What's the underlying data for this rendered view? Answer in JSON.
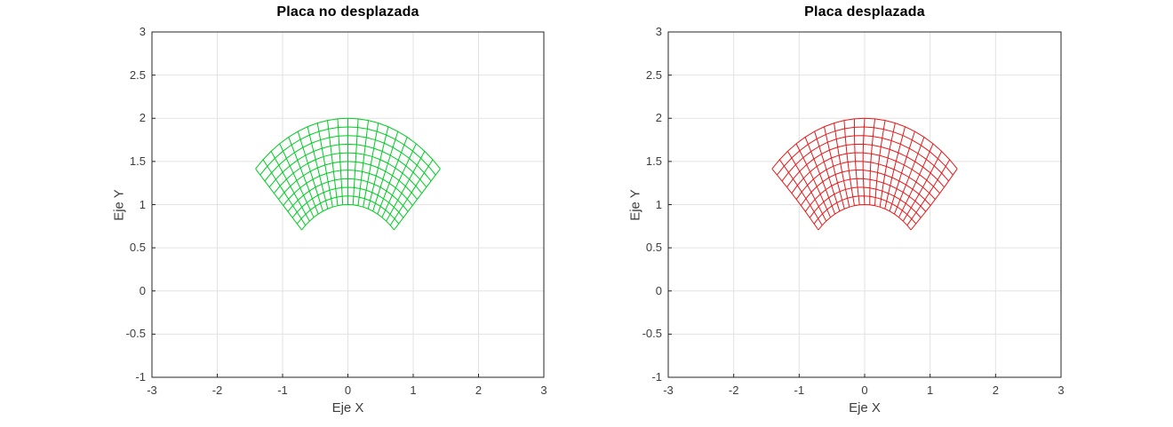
{
  "figure": {
    "background": "#ffffff",
    "axes_color": "#262626",
    "grid_color": "#e2e2e2",
    "tick_color": "#262626",
    "text_color": "#3d3d3d",
    "title_color": "#000000"
  },
  "chart_data": [
    {
      "type": "mesh",
      "title": "Placa no desplazada",
      "xlabel": "Eje X",
      "ylabel": "Eje Y",
      "xlim": [
        -3,
        3
      ],
      "ylim": [
        -1,
        3
      ],
      "xticks": [
        -3,
        -2,
        -1,
        0,
        1,
        2,
        3
      ],
      "yticks": [
        -1,
        -0.5,
        0,
        0.5,
        1,
        1.5,
        2,
        2.5,
        3
      ],
      "grid": true,
      "line_color": "#00cc22",
      "mesh": {
        "shape": "annular-sector",
        "r_inner": 1,
        "r_outer": 2,
        "theta_start_deg": 45,
        "theta_end_deg": 135,
        "radial_divisions": 10,
        "angular_divisions": 20
      },
      "displacement": {
        "amp_x": 0,
        "freq_x": 0,
        "amp_y": 0,
        "freq_y": 0
      }
    },
    {
      "type": "mesh",
      "title": "Placa desplazada",
      "xlabel": "Eje X",
      "ylabel": "Eje Y",
      "xlim": [
        -3,
        3
      ],
      "ylim": [
        -1,
        3
      ],
      "xticks": [
        -3,
        -2,
        -1,
        0,
        1,
        2,
        3
      ],
      "yticks": [
        -1,
        -0.5,
        0,
        0.5,
        1,
        1.5,
        2,
        2.5,
        3
      ],
      "grid": true,
      "line_color": "#e61919",
      "mesh": {
        "shape": "annular-sector",
        "r_inner": 1,
        "r_outer": 2,
        "theta_start_deg": 45,
        "theta_end_deg": 135,
        "radial_divisions": 10,
        "angular_divisions": 20
      },
      "displacement": {
        "amp_x": 0.025,
        "freq_x": 3,
        "amp_y": 0.02,
        "freq_y": 4
      }
    }
  ]
}
